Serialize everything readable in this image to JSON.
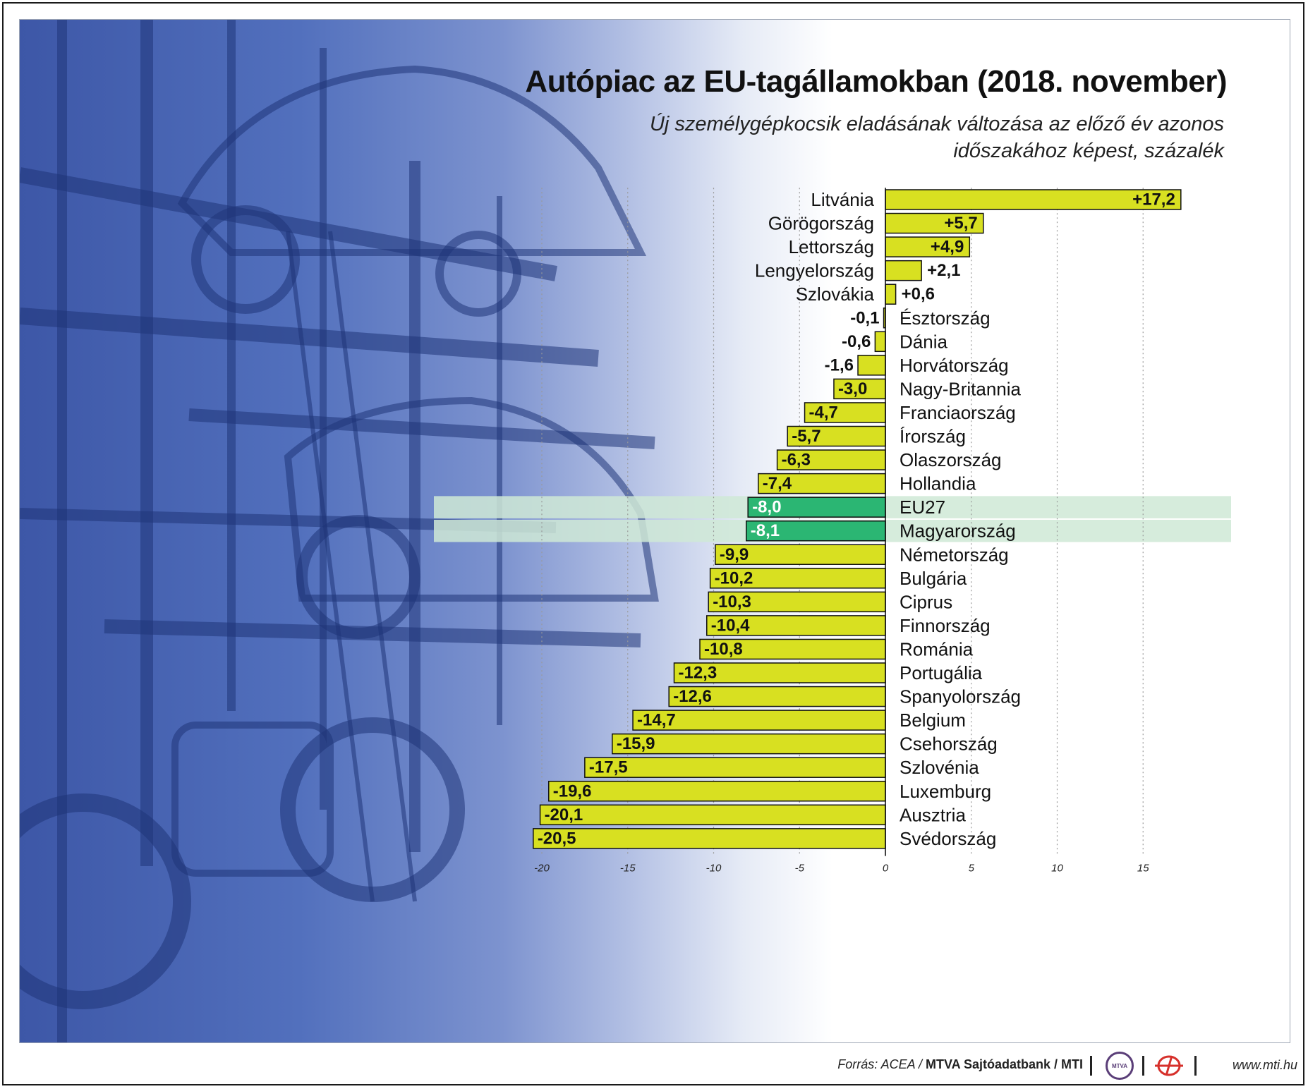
{
  "header": {
    "title": "Autópiac az EU-tagállamokban (2018. november)",
    "subtitle": "Új személygépkocsik eladásának változása az előző év azonos időszakához képest, százalék"
  },
  "footer": {
    "source_prefix": "Forrás: ACEA / ",
    "source_bold": "MTVA Sajtóadatbank / MTI",
    "website": "www.mti.hu",
    "mtva_logo_text": "MTVA"
  },
  "colors": {
    "bar": "#d8e021",
    "highlight_bar": "#2bb673",
    "highlight_band": "#cfe9d6",
    "grid": "#999999",
    "text": "#111111"
  },
  "chart_data": {
    "type": "bar",
    "orientation": "horizontal",
    "title": "Autópiac az EU-tagállamokban (2018. november)",
    "subtitle": "Új személygépkocsik eladásának változása az előző év azonos időszakához képest, százalék",
    "xlim": [
      -20,
      15
    ],
    "xticks": [
      -20,
      -15,
      -10,
      -5,
      0,
      5,
      10,
      15
    ],
    "xlabel": "",
    "ylabel": "",
    "grid": "vertical dotted",
    "categories": [
      "Litvánia",
      "Görögország",
      "Lettország",
      "Lengyelország",
      "Szlovákia",
      "Észtország",
      "Dánia",
      "Horvátország",
      "Nagy-Britannia",
      "Franciaország",
      "Írország",
      "Olaszország",
      "Hollandia",
      "EU27",
      "Magyarország",
      "Németország",
      "Bulgária",
      "Ciprus",
      "Finnország",
      "Románia",
      "Portugália",
      "Spanyolország",
      "Belgium",
      "Csehország",
      "Szlovénia",
      "Luxemburg",
      "Ausztria",
      "Svédország"
    ],
    "values": [
      17.2,
      5.7,
      4.9,
      2.1,
      0.6,
      -0.1,
      -0.6,
      -1.6,
      -3.0,
      -4.7,
      -5.7,
      -6.3,
      -7.4,
      -8.0,
      -8.1,
      -9.9,
      -10.2,
      -10.3,
      -10.4,
      -10.8,
      -12.3,
      -12.6,
      -14.7,
      -15.9,
      -17.5,
      -19.6,
      -20.1,
      -20.5
    ],
    "value_labels": [
      "+17,2",
      "+5,7",
      "+4,9",
      "+2,1",
      "+0,6",
      "-0,1",
      "-0,6",
      "-1,6",
      "-3,0",
      "-4,7",
      "-5,7",
      "-6,3",
      "-7,4",
      "-8,0",
      "-8,1",
      "-9,9",
      "-10,2",
      "-10,3",
      "-10,4",
      "-10,8",
      "-12,3",
      "-12,6",
      "-14,7",
      "-15,9",
      "-17,5",
      "-19,6",
      "-20,1",
      "-20,5"
    ],
    "highlighted": [
      "EU27",
      "Magyarország"
    ]
  }
}
